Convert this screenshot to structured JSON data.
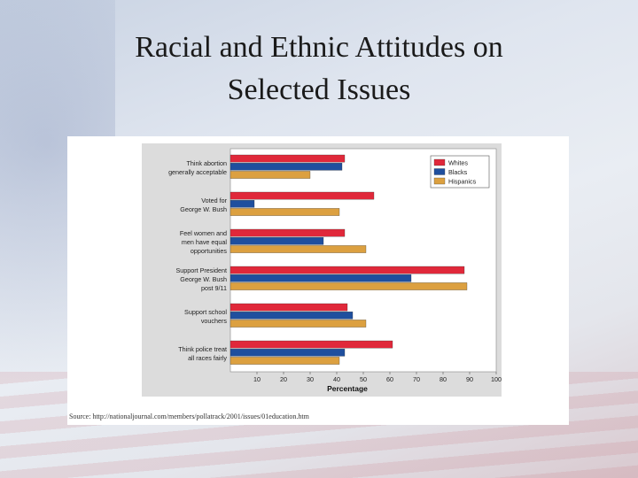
{
  "slide": {
    "title_line1": "Racial and Ethnic Attitudes on",
    "title_line2": "Selected Issues"
  },
  "figure": {
    "source": "Source: http://nationaljournal.com/members/pollatrack/2001/issues/01education.htm"
  },
  "chart_data": {
    "type": "bar",
    "orientation": "horizontal",
    "title": "",
    "xlabel": "Percentage",
    "ylabel": "",
    "xlim": [
      0,
      100
    ],
    "xticks": [
      10,
      20,
      30,
      40,
      50,
      60,
      70,
      80,
      90,
      100
    ],
    "grid": false,
    "legend_position": "top-right",
    "categories": [
      [
        "Think abortion",
        "generally acceptable"
      ],
      [
        "Voted for",
        "George W. Bush"
      ],
      [
        "Feel women and",
        "men have equal",
        "opportunities"
      ],
      [
        "Support President",
        "George W. Bush",
        "post 9/11"
      ],
      [
        "Support school",
        "vouchers"
      ],
      [
        "Think police treat",
        "all races fairly"
      ]
    ],
    "series": [
      {
        "name": "Whites",
        "color": "#e0283a",
        "values": [
          43,
          54,
          43,
          88,
          44,
          61
        ]
      },
      {
        "name": "Blacks",
        "color": "#1f4f9e",
        "values": [
          42,
          9,
          35,
          68,
          46,
          43
        ]
      },
      {
        "name": "Hispanics",
        "color": "#dca040",
        "values": [
          30,
          41,
          51,
          89,
          51,
          41
        ]
      }
    ]
  }
}
